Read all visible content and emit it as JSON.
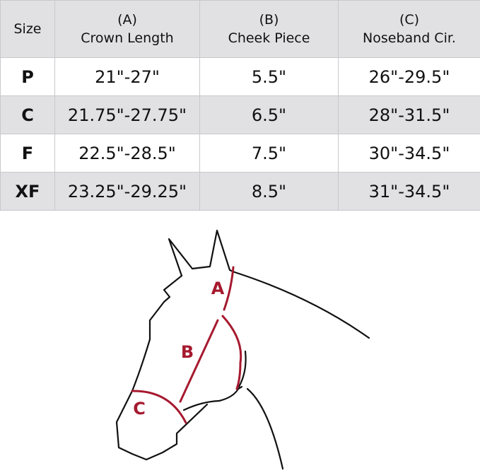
{
  "table": {
    "headers": [
      {
        "letter": "",
        "label": "Size"
      },
      {
        "letter": "(A)",
        "label": "Crown Length"
      },
      {
        "letter": "(B)",
        "label": "Cheek Piece"
      },
      {
        "letter": "(C)",
        "label": "Noseband Cir."
      }
    ],
    "rows": [
      [
        "P",
        "21\"-27\"",
        "5.5\"",
        "26\"-29.5\""
      ],
      [
        "C",
        "21.75\"-27.75\"",
        "6.5\"",
        "28\"-31.5\""
      ],
      [
        "F",
        "22.5\"-28.5\"",
        "7.5\"",
        "30\"-34.5\""
      ],
      [
        "XF",
        "23.25\"-29.25\"",
        "8.5\"",
        "31\"-34.5\""
      ]
    ]
  },
  "diagram": {
    "labels": {
      "a": "A",
      "b": "B",
      "c": "C"
    },
    "accent_color": "#a6192e"
  }
}
